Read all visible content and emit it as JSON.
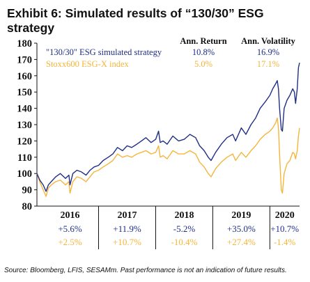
{
  "title": "Exhibit 6: Simulated results of “130/30” ESG strategy",
  "source": "Source: Bloomberg, LFIS, SESAMm. Past performance is not an indication of future results.",
  "colors": {
    "strategy": "#1f2e87",
    "index": "#f5b53a",
    "axis": "#111111",
    "text": "#1f2e87"
  },
  "chart_data": {
    "type": "line",
    "title": "Exhibit 6: Simulated results of “130/30” ESG strategy",
    "ylim": [
      80,
      180
    ],
    "yticks": [
      80,
      90,
      100,
      110,
      120,
      130,
      140,
      150,
      160,
      170,
      180
    ],
    "xlim": [
      2015.92,
      2020.52
    ],
    "x_tick_labels": [
      "2016",
      "2017",
      "2018",
      "2019",
      "2020"
    ],
    "grid": false,
    "legend_position": "top-left",
    "stats_headers": [
      "Ann. Return",
      "Ann. Volatility"
    ],
    "series": [
      {
        "name": "\"130/30\" ESG simulated strategy",
        "color": "#1f2e87",
        "ann_return": "10.8%",
        "ann_volatility": "16.9%",
        "yearly_returns": [
          "+5.6%",
          "+11.9%",
          "-5.2%",
          "+35.0%",
          "+10.7%"
        ],
        "points": [
          [
            2015.92,
            100
          ],
          [
            2015.97,
            96
          ],
          [
            2016.03,
            93
          ],
          [
            2016.08,
            89
          ],
          [
            2016.12,
            93
          ],
          [
            2016.17,
            95
          ],
          [
            2016.25,
            98
          ],
          [
            2016.33,
            100
          ],
          [
            2016.42,
            97
          ],
          [
            2016.48,
            99
          ],
          [
            2016.5,
            93
          ],
          [
            2016.55,
            100
          ],
          [
            2016.62,
            102
          ],
          [
            2016.7,
            101
          ],
          [
            2016.78,
            99
          ],
          [
            2016.85,
            102
          ],
          [
            2016.92,
            104
          ],
          [
            2017.0,
            105
          ],
          [
            2017.08,
            108
          ],
          [
            2017.17,
            110
          ],
          [
            2017.25,
            112
          ],
          [
            2017.33,
            116
          ],
          [
            2017.42,
            114
          ],
          [
            2017.5,
            117
          ],
          [
            2017.58,
            116
          ],
          [
            2017.67,
            118
          ],
          [
            2017.75,
            120
          ],
          [
            2017.83,
            122
          ],
          [
            2017.92,
            119
          ],
          [
            2018.0,
            121
          ],
          [
            2018.05,
            126
          ],
          [
            2018.08,
            119
          ],
          [
            2018.13,
            120
          ],
          [
            2018.2,
            118
          ],
          [
            2018.3,
            123
          ],
          [
            2018.4,
            120
          ],
          [
            2018.5,
            121
          ],
          [
            2018.6,
            124
          ],
          [
            2018.7,
            122
          ],
          [
            2018.77,
            117
          ],
          [
            2018.85,
            114
          ],
          [
            2018.92,
            110
          ],
          [
            2018.97,
            108
          ],
          [
            2019.05,
            113
          ],
          [
            2019.15,
            118
          ],
          [
            2019.25,
            122
          ],
          [
            2019.35,
            124
          ],
          [
            2019.4,
            120
          ],
          [
            2019.5,
            128
          ],
          [
            2019.58,
            124
          ],
          [
            2019.67,
            130
          ],
          [
            2019.75,
            134
          ],
          [
            2019.83,
            140
          ],
          [
            2019.92,
            144
          ],
          [
            2020.0,
            148
          ],
          [
            2020.05,
            152
          ],
          [
            2020.1,
            155
          ],
          [
            2020.13,
            157
          ],
          [
            2020.15,
            152
          ],
          [
            2020.17,
            140
          ],
          [
            2020.2,
            127
          ],
          [
            2020.22,
            126
          ],
          [
            2020.25,
            140
          ],
          [
            2020.3,
            145
          ],
          [
            2020.35,
            148
          ],
          [
            2020.4,
            152
          ],
          [
            2020.43,
            150
          ],
          [
            2020.45,
            143
          ],
          [
            2020.48,
            152
          ],
          [
            2020.5,
            165
          ],
          [
            2020.52,
            168
          ]
        ]
      },
      {
        "name": "Stoxx600 ESG-X index",
        "color": "#f5b53a",
        "ann_return": "5.0%",
        "ann_volatility": "17.1%",
        "yearly_returns": [
          "+2.5%",
          "+10.7%",
          "-10.4%",
          "+27.4%",
          "-1.4%"
        ],
        "points": [
          [
            2015.92,
            100
          ],
          [
            2015.97,
            95
          ],
          [
            2016.03,
            90
          ],
          [
            2016.08,
            86
          ],
          [
            2016.12,
            91
          ],
          [
            2016.17,
            93
          ],
          [
            2016.25,
            95
          ],
          [
            2016.33,
            96
          ],
          [
            2016.42,
            93
          ],
          [
            2016.48,
            95
          ],
          [
            2016.5,
            88
          ],
          [
            2016.55,
            95
          ],
          [
            2016.62,
            98
          ],
          [
            2016.7,
            97
          ],
          [
            2016.78,
            95
          ],
          [
            2016.85,
            98
          ],
          [
            2016.92,
            101
          ],
          [
            2017.0,
            102
          ],
          [
            2017.08,
            104
          ],
          [
            2017.17,
            106
          ],
          [
            2017.25,
            108
          ],
          [
            2017.33,
            112
          ],
          [
            2017.42,
            110
          ],
          [
            2017.5,
            111
          ],
          [
            2017.58,
            110
          ],
          [
            2017.67,
            112
          ],
          [
            2017.75,
            113
          ],
          [
            2017.83,
            114
          ],
          [
            2017.92,
            112
          ],
          [
            2018.0,
            113
          ],
          [
            2018.05,
            117
          ],
          [
            2018.08,
            110
          ],
          [
            2018.13,
            111
          ],
          [
            2018.2,
            109
          ],
          [
            2018.3,
            114
          ],
          [
            2018.4,
            112
          ],
          [
            2018.5,
            112
          ],
          [
            2018.6,
            114
          ],
          [
            2018.7,
            112
          ],
          [
            2018.77,
            107
          ],
          [
            2018.85,
            104
          ],
          [
            2018.92,
            100
          ],
          [
            2018.97,
            98
          ],
          [
            2019.05,
            103
          ],
          [
            2019.15,
            107
          ],
          [
            2019.25,
            110
          ],
          [
            2019.35,
            112
          ],
          [
            2019.4,
            108
          ],
          [
            2019.5,
            113
          ],
          [
            2019.58,
            110
          ],
          [
            2019.67,
            114
          ],
          [
            2019.75,
            117
          ],
          [
            2019.83,
            121
          ],
          [
            2019.92,
            124
          ],
          [
            2020.0,
            126
          ],
          [
            2020.05,
            128
          ],
          [
            2020.1,
            131
          ],
          [
            2020.13,
            134
          ],
          [
            2020.15,
            128
          ],
          [
            2020.17,
            112
          ],
          [
            2020.2,
            90
          ],
          [
            2020.22,
            88
          ],
          [
            2020.25,
            100
          ],
          [
            2020.3,
            106
          ],
          [
            2020.35,
            108
          ],
          [
            2020.4,
            113
          ],
          [
            2020.43,
            112
          ],
          [
            2020.45,
            109
          ],
          [
            2020.48,
            114
          ],
          [
            2020.5,
            123
          ],
          [
            2020.52,
            128
          ]
        ]
      }
    ]
  }
}
